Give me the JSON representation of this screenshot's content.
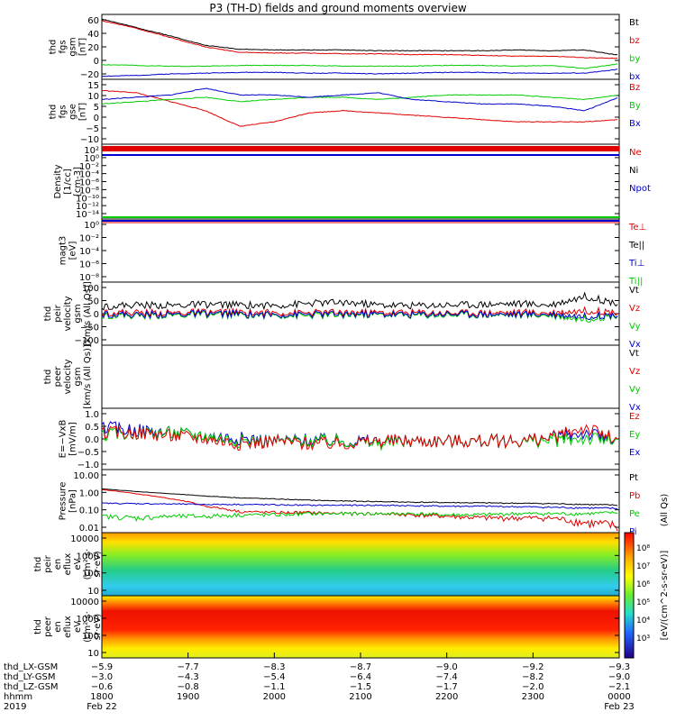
{
  "title": "P3 (TH-D) fields and ground moments overview",
  "colors": {
    "black": "#000000",
    "red": "#e00000",
    "green": "#00cc00",
    "blue": "#0000cc"
  },
  "chart_data": [
    {
      "type": "line",
      "panel": "fgs-gsm",
      "ylabel": [
        "thd",
        "fgs",
        "gsm",
        "[nT]"
      ],
      "yticks": [
        "60",
        "40",
        "20",
        "0",
        "−20"
      ],
      "ylim": [
        -22,
        62
      ],
      "legend": [
        {
          "label": "Bt",
          "color": "#000000"
        },
        {
          "label": "bz",
          "color": "#e00000"
        },
        {
          "label": "by",
          "color": "#00cc00"
        },
        {
          "label": "bx",
          "color": "#0000cc"
        }
      ],
      "series": [
        {
          "name": "Bt",
          "color": "#000000",
          "values": [
            56,
            45,
            34,
            22,
            17,
            16,
            16,
            16,
            15,
            15,
            15,
            15,
            16,
            15,
            16,
            9
          ]
        },
        {
          "name": "bz",
          "color": "#e00000",
          "values": [
            54,
            44,
            32,
            20,
            13,
            12,
            12,
            11,
            11,
            10,
            10,
            9,
            8,
            8,
            6,
            5
          ]
        },
        {
          "name": "by",
          "color": "#00cc00",
          "values": [
            -3,
            -4,
            -5,
            -5,
            -4,
            -4,
            -4,
            -5,
            -5,
            -5,
            -4,
            -4,
            -5,
            -4,
            -8,
            -2
          ]
        },
        {
          "name": "bx",
          "color": "#0000cc",
          "values": [
            -18,
            -17,
            -15,
            -14,
            -13,
            -13,
            -14,
            -14,
            -15,
            -14,
            -13,
            -13,
            -14,
            -14,
            -14,
            -9
          ]
        }
      ]
    },
    {
      "type": "line",
      "panel": "fgs-gse",
      "ylabel": [
        "thd",
        "fgs",
        "gse",
        "[nT]"
      ],
      "yticks": [
        "15",
        "10",
        "5",
        "0",
        "−5",
        "−10"
      ],
      "ylim": [
        -13,
        16
      ],
      "legend": [
        {
          "label": "Bz",
          "color": "#e00000"
        },
        {
          "label": "By",
          "color": "#00cc00"
        },
        {
          "label": "Bx",
          "color": "#0000cc"
        }
      ],
      "series": [
        {
          "name": "Bz",
          "color": "#e00000",
          "values": [
            11,
            10,
            6,
            2,
            -5,
            -3,
            1,
            2,
            1,
            0,
            -1,
            -2,
            -3,
            -3,
            -3,
            -2
          ]
        },
        {
          "name": "By",
          "color": "#00cc00",
          "values": [
            5,
            6,
            7,
            8,
            6,
            7,
            8,
            8,
            7,
            8,
            9,
            9,
            9,
            8,
            7,
            9
          ]
        },
        {
          "name": "Bx",
          "color": "#0000cc",
          "values": [
            7,
            8,
            9,
            12,
            9,
            9,
            8,
            9,
            10,
            7,
            6,
            5,
            5,
            4,
            2,
            8
          ]
        }
      ]
    },
    {
      "type": "line",
      "panel": "density",
      "ylabel": [
        "Density",
        "[1/cc]",
        "[cm-3]"
      ],
      "yticks": [
        "10²",
        "10⁰",
        "10⁻²",
        "10⁻⁴",
        "10⁻⁶",
        "10⁻⁸",
        "10⁻¹⁰",
        "10⁻¹²",
        "10⁻¹⁴"
      ],
      "ylim": [
        -15,
        3
      ],
      "legend": [
        {
          "label": "Ne",
          "color": "#e00000"
        },
        {
          "label": "Ni",
          "color": "#000000"
        },
        {
          "label": "Npot",
          "color": "#0000cc"
        }
      ]
    },
    {
      "type": "line",
      "panel": "temperature",
      "ylabel": [
        "magt3",
        "[eV]"
      ],
      "yticks": [
        "10⁰",
        "10⁻²",
        "10⁻⁴",
        "10⁻⁶",
        "10⁻⁸"
      ],
      "ylim": [
        -9,
        1
      ],
      "legend": [
        {
          "label": "Te⊥",
          "color": "#e00000"
        },
        {
          "label": "Te||",
          "color": "#000000"
        },
        {
          "label": "Ti⊥",
          "color": "#0000cc"
        },
        {
          "label": "Ti||",
          "color": "#00cc00"
        }
      ]
    },
    {
      "type": "line",
      "panel": "peir-velocity",
      "ylabel": [
        "thd",
        "peir",
        "velocity",
        "gsm",
        "[km/s (All Qs)]"
      ],
      "yticks": [
        "100",
        "50",
        "0",
        "−50",
        "−100"
      ],
      "ylim": [
        -110,
        110
      ],
      "legend": [
        {
          "label": "Vt",
          "color": "#000000"
        },
        {
          "label": "Vz",
          "color": "#e00000"
        },
        {
          "label": "Vy",
          "color": "#00cc00"
        },
        {
          "label": "Vx",
          "color": "#0000cc"
        }
      ],
      "series": [
        {
          "name": "Vt",
          "color": "#000000",
          "values": [
            25,
            30,
            28,
            32,
            30,
            28,
            35,
            40,
            30,
            28,
            30,
            32,
            35,
            30,
            60,
            35
          ]
        },
        {
          "name": "Vz",
          "color": "#e00000",
          "values": [
            5,
            3,
            2,
            5,
            4,
            3,
            2,
            5,
            3,
            4,
            2,
            3,
            4,
            3,
            10,
            5
          ]
        },
        {
          "name": "Vy",
          "color": "#00cc00",
          "values": [
            -5,
            -8,
            -6,
            -4,
            -5,
            -6,
            -8,
            -5,
            -4,
            -6,
            -5,
            -4,
            -5,
            -6,
            -20,
            -5
          ]
        },
        {
          "name": "Vx",
          "color": "#0000cc",
          "values": [
            0,
            -5,
            -3,
            0,
            -2,
            -4,
            -3,
            -1,
            -2,
            -3,
            -1,
            -2,
            -3,
            -2,
            -10,
            -3
          ]
        }
      ]
    },
    {
      "type": "line",
      "panel": "peer-velocity",
      "ylabel": [
        "thd",
        "peer",
        "velocity",
        "gsm",
        "[km/s (All Qs)]"
      ],
      "legend": [
        {
          "label": "Vt",
          "color": "#000000"
        },
        {
          "label": "Vz",
          "color": "#e00000"
        },
        {
          "label": "Vy",
          "color": "#00cc00"
        },
        {
          "label": "Vx",
          "color": "#0000cc"
        }
      ]
    },
    {
      "type": "line",
      "panel": "efield",
      "ylabel": [
        "E=−VxB",
        "[mV/m]"
      ],
      "yticks": [
        "1.0",
        "0.5",
        "0.0",
        "−0.5",
        "−1.0"
      ],
      "ylim": [
        -1.05,
        1.2
      ],
      "legend": [
        {
          "label": "Ez",
          "color": "#e00000"
        },
        {
          "label": "Ey",
          "color": "#00cc00"
        },
        {
          "label": "Ex",
          "color": "#0000cc"
        }
      ],
      "series": [
        {
          "name": "Ex",
          "color": "#0000cc",
          "values": [
            0.5,
            0.4,
            0.3,
            0.2,
            0.1,
            0.0,
            0.05,
            0.0,
            0.0,
            0.0,
            0.0,
            0.0,
            0.0,
            0.1,
            0.3,
            0.0
          ]
        },
        {
          "name": "Ey",
          "color": "#00cc00",
          "values": [
            0.2,
            0.3,
            0.3,
            0.2,
            0.0,
            0.0,
            0.0,
            0.0,
            -0.1,
            0.0,
            0.0,
            0.0,
            0.0,
            0.0,
            0.1,
            0.0
          ]
        },
        {
          "name": "Ez",
          "color": "#e00000",
          "values": [
            0.3,
            0.3,
            0.2,
            0.1,
            -0.1,
            0.0,
            -0.1,
            -0.1,
            0.0,
            0.0,
            0.0,
            0.0,
            0.0,
            0.1,
            0.5,
            0.0
          ]
        }
      ]
    },
    {
      "type": "line",
      "panel": "pressure",
      "ylabel": [
        "Pressure",
        "[nPa]"
      ],
      "yticks": [
        "10.00",
        "1.00",
        "0.10",
        "0.01"
      ],
      "ylim": [
        -2,
        1
      ],
      "yscale": "log",
      "legend": [
        {
          "label": "Pt",
          "color": "#000000"
        },
        {
          "label": "Pb",
          "color": "#e00000"
        },
        {
          "label": "Pe",
          "color": "#00cc00"
        },
        {
          "label": "Pi",
          "color": "#0000cc"
        }
      ],
      "side_label": "(All Qs)",
      "series": [
        {
          "name": "Pt",
          "color": "#000000",
          "values": [
            1.2,
            0.9,
            0.7,
            0.55,
            0.45,
            0.4,
            0.35,
            0.32,
            0.3,
            0.28,
            0.27,
            0.26,
            0.25,
            0.24,
            0.22,
            0.2
          ]
        },
        {
          "name": "Pb",
          "color": "#e00000",
          "values": [
            1.1,
            0.7,
            0.4,
            0.18,
            0.1,
            0.09,
            0.09,
            0.08,
            0.08,
            0.07,
            0.06,
            0.05,
            0.05,
            0.05,
            0.03,
            0.02
          ]
        },
        {
          "name": "Pe",
          "color": "#00cc00",
          "values": [
            0.06,
            0.05,
            0.06,
            0.06,
            0.07,
            0.07,
            0.08,
            0.08,
            0.08,
            0.08,
            0.07,
            0.07,
            0.08,
            0.08,
            0.08,
            0.09
          ]
        },
        {
          "name": "Pi",
          "color": "#0000cc",
          "values": [
            0.25,
            0.24,
            0.23,
            0.22,
            0.22,
            0.21,
            0.2,
            0.2,
            0.2,
            0.19,
            0.18,
            0.18,
            0.17,
            0.16,
            0.15,
            0.14
          ]
        }
      ]
    },
    {
      "type": "heatmap",
      "panel": "peir-en-eflux",
      "ylabel": [
        "thd",
        "peir",
        "en",
        "eflux",
        "eV",
        "(cm²·s·",
        "sr·eV)"
      ],
      "yticks": [
        "10000",
        "1000",
        "100",
        "10"
      ],
      "ylim": [
        5,
        30000
      ],
      "yscale": "log"
    },
    {
      "type": "heatmap",
      "panel": "peer-en-eflux",
      "ylabel": [
        "thd",
        "peer",
        "en",
        "eflux",
        "eV",
        "(cm²·s·",
        "sr·eV)"
      ],
      "yticks": [
        "10000",
        "1000",
        "100",
        "10"
      ],
      "ylim": [
        5,
        30000
      ],
      "yscale": "log"
    }
  ],
  "colorbar": {
    "label": "[eV/(cm^2-s-sr-eV)]",
    "ticks": [
      "10⁸",
      "10⁷",
      "10⁶",
      "10⁵",
      "10⁴",
      "10³"
    ]
  },
  "time_axis": {
    "rows": [
      {
        "label": "thd_LX-GSM",
        "values": [
          "−5.9",
          "−7.7",
          "−8.3",
          "−8.7",
          "−9.0",
          "−9.2",
          "−9.3"
        ]
      },
      {
        "label": "thd_LY-GSM",
        "values": [
          "−3.0",
          "−4.3",
          "−5.4",
          "−6.4",
          "−7.4",
          "−8.2",
          "−9.0"
        ]
      },
      {
        "label": "thd_LZ-GSM",
        "values": [
          "−0.6",
          "−0.8",
          "−1.1",
          "−1.5",
          "−1.7",
          "−2.0",
          "−2.1"
        ]
      },
      {
        "label": "hhmm",
        "values": [
          "1800",
          "1900",
          "2000",
          "2100",
          "2200",
          "2300",
          "0000"
        ]
      },
      {
        "label": "2019",
        "values": [
          "Feb 22",
          "",
          "",
          "",
          "",
          "",
          "Feb 23"
        ]
      }
    ]
  }
}
